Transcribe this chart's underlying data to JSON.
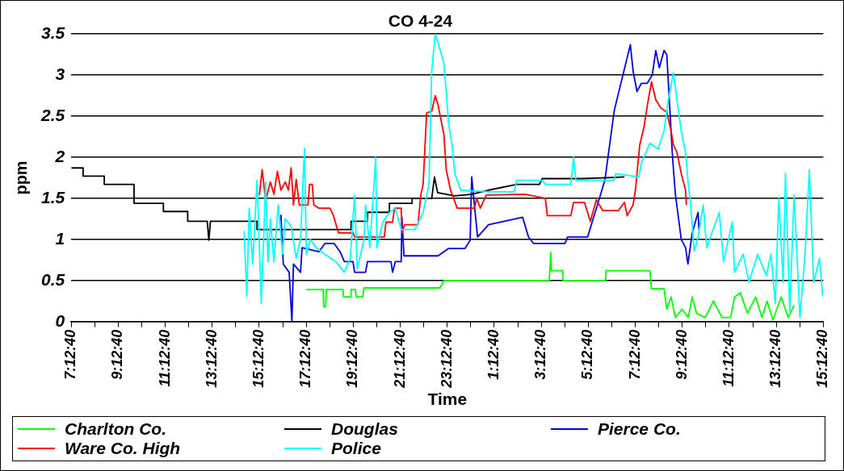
{
  "chart_data": {
    "type": "line",
    "title": "CO 4-24",
    "xlabel": "Time",
    "ylabel": "ppm",
    "grid": "y",
    "legend": "bottom",
    "xlim": [
      "--04-24T07:12:40",
      "--04-25T15:12:40"
    ],
    "ylim": [
      0,
      3.5
    ],
    "yticks": [
      0,
      0.5,
      1,
      1.5,
      2,
      2.5,
      3,
      3.5
    ],
    "xticks": [
      {
        "value": "--04-24T07:12:40",
        "label": "7:12:40"
      },
      {
        "value": "--04-24T08:12:40",
        "label": null
      },
      {
        "value": "--04-24T09:12:40",
        "label": "9:12:40"
      },
      {
        "value": "--04-24T10:12:40",
        "label": null
      },
      {
        "value": "--04-24T11:12:40",
        "label": "11:12:40"
      },
      {
        "value": "--04-24T12:12:40",
        "label": null
      },
      {
        "value": "--04-24T13:12:40",
        "label": "13:12:40"
      },
      {
        "value": "--04-24T14:12:40",
        "label": null
      },
      {
        "value": "--04-24T15:12:40",
        "label": "15:12:40"
      },
      {
        "value": "--04-24T16:12:40",
        "label": null
      },
      {
        "value": "--04-24T17:12:40",
        "label": "17:12:40"
      },
      {
        "value": "--04-24T18:12:40",
        "label": null
      },
      {
        "value": "--04-24T19:12:40",
        "label": "19:12:40"
      },
      {
        "value": "--04-24T20:12:40",
        "label": null
      },
      {
        "value": "--04-24T21:12:40",
        "label": "21:12:40"
      },
      {
        "value": "--04-24T22:12:40",
        "label": null
      },
      {
        "value": "--04-24T23:12:40",
        "label": "23:12:40"
      },
      {
        "value": "--04-25T00:12:40",
        "label": null
      },
      {
        "value": "--04-25T01:12:40",
        "label": "1:12:40"
      },
      {
        "value": "--04-25T02:12:40",
        "label": null
      },
      {
        "value": "--04-25T03:12:40",
        "label": "3:12:40"
      },
      {
        "value": "--04-25T04:12:40",
        "label": null
      },
      {
        "value": "--04-25T05:12:40",
        "label": "5:12:40"
      },
      {
        "value": "--04-25T06:12:40",
        "label": null
      },
      {
        "value": "--04-25T07:12:40",
        "label": "7:12:40"
      },
      {
        "value": "--04-25T08:12:40",
        "label": null
      },
      {
        "value": "--04-25T09:12:40",
        "label": "9:12:40"
      },
      {
        "value": "--04-25T10:12:40",
        "label": null
      },
      {
        "value": "--04-25T11:12:40",
        "label": "11:12:40"
      },
      {
        "value": "--04-25T12:12:40",
        "label": null
      },
      {
        "value": "--04-25T13:12:40",
        "label": "13:12:40"
      },
      {
        "value": "--04-25T14:12:40",
        "label": null
      },
      {
        "value": "--04-25T15:12:40",
        "label": "15:12:40"
      }
    ],
    "series": [
      {
        "name": "Charlton Co.",
        "color": "#00ff00",
        "x": [
          "--04-24T17:13",
          "--04-24T17:56",
          "--04-24T17:57",
          "--04-24T18:02",
          "--04-24T18:04",
          "--04-24T18:46",
          "--04-24T18:48",
          "--04-24T19:06",
          "--04-24T19:07",
          "--04-24T19:18",
          "--04-24T19:20",
          "--04-24T19:37",
          "--04-24T19:40",
          "--04-24T22:54",
          "--04-24T23:04",
          "--04-25T03:33",
          "--04-25T03:37",
          "--04-25T03:39",
          "--04-25T04:07",
          "--04-25T04:08",
          "--04-25T05:57",
          "--04-25T05:58",
          "--04-25T07:50",
          "--04-25T07:54",
          "--04-25T08:26",
          "--04-25T08:33",
          "--04-25T08:44",
          "--04-25T08:55",
          "--04-25T09:12",
          "--04-25T09:28",
          "--04-25T09:38",
          "--04-25T09:49",
          "--04-25T10:11",
          "--04-25T10:32",
          "--04-25T10:54",
          "--04-25T11:16",
          "--04-25T11:26",
          "--04-25T11:41",
          "--04-25T11:59",
          "--04-25T12:20",
          "--04-25T12:36",
          "--04-25T12:49",
          "--04-25T13:04",
          "--04-25T13:25",
          "--04-25T13:43",
          "--04-25T13:58"
        ],
        "values": [
          0.39,
          0.39,
          0.18,
          0.18,
          0.39,
          0.39,
          0.3,
          0.3,
          0.39,
          0.39,
          0.3,
          0.3,
          0.41,
          0.41,
          0.5,
          0.5,
          0.84,
          0.62,
          0.62,
          0.5,
          0.5,
          0.62,
          0.62,
          0.4,
          0.4,
          0.15,
          0.3,
          0.05,
          0.15,
          0.05,
          0.3,
          0.1,
          0.05,
          0.25,
          0.05,
          0.05,
          0.3,
          0.35,
          0.1,
          0.3,
          0.05,
          0.25,
          0.02,
          0.3,
          0.05,
          0.2
        ]
      },
      {
        "name": "Douglas",
        "color": "#000000",
        "x": [
          "--04-24T07:13",
          "--04-24T07:43",
          "--04-24T07:43",
          "--04-24T08:37",
          "--04-24T08:37",
          "--04-24T09:53",
          "--04-24T09:53",
          "--04-24T11:08",
          "--04-24T11:08",
          "--04-24T12:10",
          "--04-24T12:10",
          "--04-24T13:00",
          "--04-24T13:04",
          "--04-24T13:08",
          "--04-24T15:07",
          "--04-24T15:07",
          "--04-24T19:07",
          "--04-24T19:07",
          "--04-24T19:49",
          "--04-24T19:49",
          "--04-24T20:45",
          "--04-24T20:45",
          "--04-24T21:43",
          "--04-24T21:43",
          "--04-24T22:33",
          "--04-24T22:40",
          "--04-24T22:48",
          "--04-24T23:32",
          "--04-25T00:15",
          "--04-25T00:58",
          "--04-25T02:10",
          "--04-25T03:08",
          "--04-25T03:15",
          "--04-25T04:56",
          "--04-25T06:45"
        ],
        "values": [
          1.87,
          1.87,
          1.77,
          1.77,
          1.67,
          1.67,
          1.44,
          1.44,
          1.34,
          1.34,
          1.22,
          1.22,
          0.99,
          1.22,
          1.22,
          1.12,
          1.12,
          1.22,
          1.22,
          1.33,
          1.33,
          1.44,
          1.44,
          1.5,
          1.5,
          1.76,
          1.57,
          1.53,
          1.55,
          1.6,
          1.67,
          1.67,
          1.74,
          1.74,
          1.76
        ]
      },
      {
        "name": "Pierce Co.",
        "color": "#0000dd",
        "x": [
          "--04-24T16:08",
          "--04-24T16:14",
          "--04-24T16:29",
          "--04-24T16:36",
          "--04-24T16:40",
          "--04-24T16:58",
          "--04-24T17:02",
          "--04-24T17:45",
          "--04-24T18:00",
          "--04-24T18:24",
          "--04-24T18:39",
          "--04-24T18:50",
          "--04-24T19:12",
          "--04-24T19:16",
          "--04-24T19:44",
          "--04-24T19:49",
          "--04-24T20:49",
          "--04-24T20:53",
          "--04-24T21:00",
          "--04-24T21:15",
          "--04-24T21:17",
          "--04-24T21:22",
          "--04-24T22:49",
          "--04-24T23:16",
          "--04-24T23:58",
          "--04-25T00:11",
          "--04-25T00:15",
          "--04-25T00:30",
          "--04-25T00:58",
          "--04-25T02:25",
          "--04-25T02:40",
          "--04-25T02:53",
          "--04-25T03:08",
          "--04-25T04:13",
          "--04-25T04:20",
          "--04-25T05:11",
          "--04-25T05:55",
          "--04-25T06:19",
          "--04-25T06:41",
          "--04-25T07:00",
          "--04-25T07:07",
          "--04-25T07:17",
          "--04-25T07:28",
          "--04-25T07:43",
          "--04-25T07:56",
          "--04-25T08:05",
          "--04-25T08:14",
          "--04-25T08:26",
          "--04-25T08:33",
          "--04-25T08:48",
          "--04-25T08:55",
          "--04-25T09:01",
          "--04-25T09:10",
          "--04-25T09:21",
          "--04-25T09:27",
          "--04-25T09:38",
          "--04-25T09:53",
          "--04-25T09:55"
        ],
        "values": [
          1.3,
          0.7,
          0.6,
          0.0,
          0.7,
          0.6,
          0.9,
          0.85,
          0.95,
          0.95,
          0.85,
          0.73,
          0.73,
          0.6,
          0.6,
          0.73,
          0.73,
          0.6,
          0.73,
          0.73,
          1.27,
          0.8,
          0.8,
          0.89,
          0.89,
          0.99,
          1.76,
          1.03,
          1.18,
          1.27,
          1.03,
          0.95,
          0.95,
          0.95,
          1.03,
          1.03,
          1.72,
          2.57,
          3.0,
          3.37,
          3.05,
          2.8,
          2.9,
          2.9,
          3.0,
          3.3,
          3.09,
          3.3,
          3.25,
          1.98,
          1.55,
          1.33,
          1.0,
          0.9,
          0.7,
          1.08,
          1.33,
          1.12
        ]
      },
      {
        "name": "Ware Co. High",
        "color": "#ff0000",
        "x": [
          "--04-24T15:13",
          "--04-24T15:20",
          "--04-24T15:29",
          "--04-24T15:41",
          "--04-24T15:50",
          "--04-24T15:59",
          "--04-24T16:08",
          "--04-24T16:19",
          "--04-24T16:27",
          "--04-24T16:34",
          "--04-24T16:40",
          "--04-24T16:47",
          "--04-24T16:55",
          "--04-24T17:17",
          "--04-24T17:21",
          "--04-24T17:28",
          "--04-24T17:32",
          "--04-24T17:45",
          "--04-24T18:13",
          "--04-24T18:22",
          "--04-24T18:35",
          "--04-24T19:12",
          "--04-24T19:16",
          "--04-24T20:32",
          "--04-24T20:36",
          "--04-24T20:53",
          "--04-24T20:58",
          "--04-24T21:15",
          "--04-24T21:17",
          "--04-24T21:24",
          "--04-24T21:58",
          "--04-24T22:05",
          "--04-24T22:11",
          "--04-24T22:20",
          "--04-24T22:33",
          "--04-24T22:42",
          "--04-24T22:49",
          "--04-24T23:04",
          "--04-24T23:10",
          "--04-24T23:21",
          "--04-24T23:38",
          "--04-25T00:22",
          "--04-25T00:28",
          "--04-25T00:37",
          "--04-25T00:52",
          "--04-25T02:31",
          "--04-25T03:23",
          "--04-25T03:28",
          "--04-25T04:28",
          "--04-25T04:35",
          "--04-25T05:03",
          "--04-25T05:18",
          "--04-25T05:33",
          "--04-25T05:50",
          "--04-25T06:29",
          "--04-25T06:45",
          "--04-25T06:52",
          "--04-25T07:07",
          "--04-25T07:13",
          "--04-25T07:24",
          "--04-25T07:35",
          "--04-25T07:43",
          "--04-25T07:54",
          "--04-25T08:05",
          "--04-25T08:18",
          "--04-25T08:33",
          "--04-25T08:44",
          "--04-25T08:50",
          "--04-25T08:59",
          "--04-25T09:10",
          "--04-25T09:21",
          "--04-25T09:23"
        ],
        "values": [
          1.54,
          1.85,
          1.47,
          1.7,
          1.55,
          1.83,
          1.6,
          1.7,
          1.6,
          1.87,
          1.42,
          1.73,
          1.42,
          1.42,
          1.67,
          1.67,
          1.42,
          1.38,
          1.38,
          1.29,
          1.08,
          1.08,
          1.03,
          1.03,
          1.21,
          1.21,
          1.38,
          1.38,
          1.08,
          1.18,
          1.18,
          1.54,
          1.67,
          2.54,
          2.56,
          2.75,
          2.64,
          2.28,
          1.85,
          1.6,
          1.38,
          1.38,
          1.5,
          1.38,
          1.54,
          1.55,
          1.5,
          1.29,
          1.29,
          1.45,
          1.45,
          1.22,
          1.48,
          1.35,
          1.35,
          1.45,
          1.29,
          1.42,
          1.6,
          2.15,
          2.37,
          2.62,
          2.92,
          2.7,
          2.6,
          2.55,
          2.32,
          2.15,
          2.06,
          1.8,
          1.6,
          1.42
        ]
      },
      {
        "name": "Police",
        "color": "#00ffff",
        "x": [
          "--04-24T14:34",
          "--04-24T14:41",
          "--04-24T14:47",
          "--04-24T14:56",
          "--04-24T15:07",
          "--04-24T15:18",
          "--04-24T15:29",
          "--04-24T15:35",
          "--04-24T15:41",
          "--04-24T15:50",
          "--04-24T16:01",
          "--04-24T16:12",
          "--04-24T16:19",
          "--04-24T16:34",
          "--04-24T16:47",
          "--04-24T16:58",
          "--04-24T17:08",
          "--04-24T17:13",
          "--04-24T17:23",
          "--04-24T17:38",
          "--04-24T18:00",
          "--04-24T18:28",
          "--04-24T18:50",
          "--04-24T19:05",
          "--04-24T19:16",
          "--04-24T19:23",
          "--04-24T19:40",
          "--04-24T19:44",
          "--04-24T19:55",
          "--04-24T20:10",
          "--04-24T20:13",
          "--04-24T20:28",
          "--04-24T20:45",
          "--04-24T21:00",
          "--04-24T21:15",
          "--04-24T21:50",
          "--04-24T22:11",
          "--04-24T22:26",
          "--04-24T22:33",
          "--04-24T22:42",
          "--04-24T22:49",
          "--04-24T23:04",
          "--04-24T23:10",
          "--04-24T23:16",
          "--04-24T23:25",
          "--04-24T23:32",
          "--04-24T23:47",
          "--04-25T00:58",
          "--04-25T02:03",
          "--04-25T02:10",
          "--04-25T03:15",
          "--04-25T03:23",
          "--04-25T04:28",
          "--04-25T04:35",
          "--04-25T04:41",
          "--04-25T06:17",
          "--04-25T06:23",
          "--04-25T07:22",
          "--04-25T07:28",
          "--04-25T07:50",
          "--04-25T08:11",
          "--04-25T08:26",
          "--04-25T08:37",
          "--04-25T08:50",
          "--04-25T08:59",
          "--04-25T09:10",
          "--04-25T09:21",
          "--04-25T09:27",
          "--04-25T09:34",
          "--04-25T09:43",
          "--04-25T09:53",
          "--04-25T10:06",
          "--04-25T10:15",
          "--04-25T10:28",
          "--04-25T10:47",
          "--04-25T10:58",
          "--04-25T11:20",
          "--04-25T11:26",
          "--04-25T11:48",
          "--04-25T12:03",
          "--04-25T12:25",
          "--04-25T12:47",
          "--04-25T12:59",
          "--04-25T13:10",
          "--04-25T13:19",
          "--04-25T13:30",
          "--04-25T13:36",
          "--04-25T13:47",
          "--04-25T13:58",
          "--04-25T14:13",
          "--04-25T14:26",
          "--04-25T14:37",
          "--04-25T14:48",
          "--04-25T15:03",
          "--04-25T15:11"
        ],
        "values": [
          1.1,
          0.31,
          1.38,
          0.7,
          1.72,
          0.22,
          1.7,
          0.73,
          1.25,
          0.73,
          1.42,
          0.82,
          1.25,
          1.16,
          0.77,
          1.0,
          2.11,
          0.82,
          1.0,
          0.9,
          0.82,
          0.73,
          0.6,
          0.77,
          1.54,
          0.64,
          1.0,
          1.42,
          0.9,
          2.0,
          0.9,
          1.21,
          1.33,
          1.38,
          1.12,
          1.12,
          1.33,
          1.67,
          3.05,
          3.5,
          3.4,
          3.14,
          2.8,
          2.41,
          2.15,
          1.8,
          1.6,
          1.58,
          1.58,
          1.72,
          1.72,
          1.67,
          1.67,
          2.0,
          1.72,
          1.72,
          1.8,
          1.76,
          1.93,
          2.17,
          2.1,
          2.32,
          2.7,
          3.03,
          2.7,
          2.32,
          2.06,
          1.72,
          1.42,
          0.86,
          1.03,
          1.42,
          0.9,
          1.08,
          1.33,
          0.73,
          1.21,
          0.6,
          0.82,
          0.48,
          0.82,
          0.56,
          0.82,
          0.22,
          1.5,
          0.48,
          1.8,
          0.13,
          1.54,
          0.05,
          0.82,
          1.85,
          0.48,
          0.77,
          0.31
        ]
      }
    ]
  }
}
